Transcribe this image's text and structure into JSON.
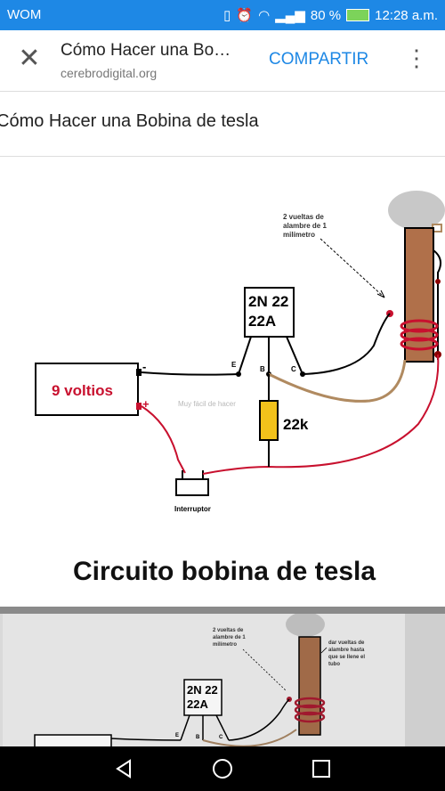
{
  "status": {
    "carrier": "WOM",
    "battery": "80 %",
    "time": "12:28 a.m."
  },
  "appbar": {
    "title": "Cómo Hacer una Bo…",
    "url": "cerebrodigital.org",
    "share": "COMPARTIR"
  },
  "page": {
    "heading": "Cómo Hacer una Bobina de tesla"
  },
  "diagram": {
    "coil_note": [
      "2 vueltas de",
      "alambre  de 1",
      "milímetro"
    ],
    "transistor": [
      "2N 22",
      "22A"
    ],
    "pins": {
      "e": "E",
      "b": "B",
      "c": "C"
    },
    "battery": "9 voltios",
    "minus": "-",
    "plus": "+",
    "watermark": "Muy fácil de hacer",
    "resistor": "22k",
    "switch": "Interruptor",
    "caption": "Circuito bobina de tesla"
  },
  "diagram2": {
    "coil_note": [
      "2 vueltas de",
      "alambre  de 1",
      "milímetro"
    ],
    "fill_note": [
      "dar vueltas de",
      "alambre hasta",
      "que se llene el",
      "tubo"
    ],
    "transistor": [
      "2N 22",
      "22A"
    ],
    "pins": {
      "e": "E",
      "b": "B",
      "c": "C"
    }
  },
  "colors": {
    "statusbar": "#1e88e5",
    "accent": "#1e88e5",
    "wire_red": "#c8102e",
    "wire_tan": "#b08a60",
    "coil_brown": "#b0704a",
    "resistor": "#f2c21b"
  }
}
